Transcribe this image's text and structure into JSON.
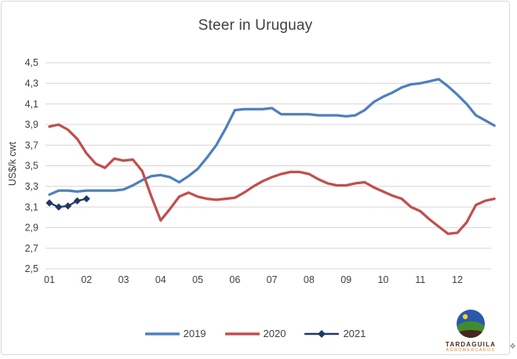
{
  "chart_data": {
    "type": "line",
    "title": "Steer in Uruguay",
    "xlabel": "",
    "ylabel": "US$/k cwt",
    "ylim": [
      2.5,
      4.5
    ],
    "y_tick_step": 0.2,
    "grid": "horizontal",
    "legend_position": "bottom-center",
    "x_unit": "month (weekly data points)",
    "y_ticks": [
      {
        "value": 4.5,
        "label": "4,5"
      },
      {
        "value": 4.3,
        "label": "4,3"
      },
      {
        "value": 4.1,
        "label": "4,1"
      },
      {
        "value": 3.9,
        "label": "3,9"
      },
      {
        "value": 3.7,
        "label": "3,7"
      },
      {
        "value": 3.5,
        "label": "3,5"
      },
      {
        "value": 3.3,
        "label": "3,3"
      },
      {
        "value": 3.1,
        "label": "3,1"
      },
      {
        "value": 2.9,
        "label": "2,9"
      },
      {
        "value": 2.7,
        "label": "2,7"
      },
      {
        "value": 2.5,
        "label": "2,5"
      }
    ],
    "x_ticks": [
      {
        "month": 1,
        "label": "01"
      },
      {
        "month": 2,
        "label": "02"
      },
      {
        "month": 3,
        "label": "03"
      },
      {
        "month": 4,
        "label": "04"
      },
      {
        "month": 5,
        "label": "05"
      },
      {
        "month": 6,
        "label": "06"
      },
      {
        "month": 7,
        "label": "07"
      },
      {
        "month": 8,
        "label": "08"
      },
      {
        "month": 9,
        "label": "09"
      },
      {
        "month": 10,
        "label": "10"
      },
      {
        "month": 11,
        "label": "11"
      },
      {
        "month": 12,
        "label": "12"
      }
    ],
    "series": [
      {
        "name": "2019",
        "color": "#4e80bd",
        "marker": "none",
        "line_width": 3.25,
        "x_start": 1,
        "x_step": 0.25,
        "values": [
          3.22,
          3.26,
          3.26,
          3.25,
          3.26,
          3.26,
          3.26,
          3.26,
          3.27,
          3.31,
          3.36,
          3.4,
          3.41,
          3.39,
          3.34,
          3.4,
          3.47,
          3.58,
          3.7,
          3.86,
          4.04,
          4.05,
          4.05,
          4.05,
          4.06,
          4.0,
          4.0,
          4.0,
          4.0,
          3.99,
          3.99,
          3.99,
          3.98,
          3.99,
          4.04,
          4.12,
          4.17,
          4.21,
          4.26,
          4.29,
          4.3,
          4.32,
          4.34,
          4.27,
          4.19,
          4.1,
          3.99,
          3.94,
          3.89
        ]
      },
      {
        "name": "2020",
        "color": "#c0504d",
        "marker": "none",
        "line_width": 3.25,
        "x_start": 1,
        "x_step": 0.25,
        "values": [
          3.88,
          3.9,
          3.85,
          3.76,
          3.62,
          3.52,
          3.48,
          3.57,
          3.55,
          3.56,
          3.45,
          3.2,
          2.97,
          3.08,
          3.2,
          3.24,
          3.2,
          3.18,
          3.17,
          3.18,
          3.19,
          3.24,
          3.3,
          3.35,
          3.39,
          3.42,
          3.44,
          3.44,
          3.42,
          3.37,
          3.33,
          3.31,
          3.31,
          3.33,
          3.34,
          3.29,
          3.25,
          3.21,
          3.18,
          3.1,
          3.06,
          2.98,
          2.91,
          2.84,
          2.85,
          2.95,
          3.12,
          3.16,
          3.18
        ]
      },
      {
        "name": "2021",
        "color": "#1f3864",
        "marker": "diamond",
        "line_width": 2.25,
        "x_start": 1,
        "x_step": 0.25,
        "values": [
          3.14,
          3.1,
          3.11,
          3.16,
          3.18
        ]
      }
    ]
  },
  "colors": {
    "gridline": "#d6d6d6",
    "axis_text": "#404040",
    "frame_border": "#d8d8d8"
  },
  "logo": {
    "brand": "TARDAGUILA",
    "subtext": "AGROMERCADOS"
  }
}
